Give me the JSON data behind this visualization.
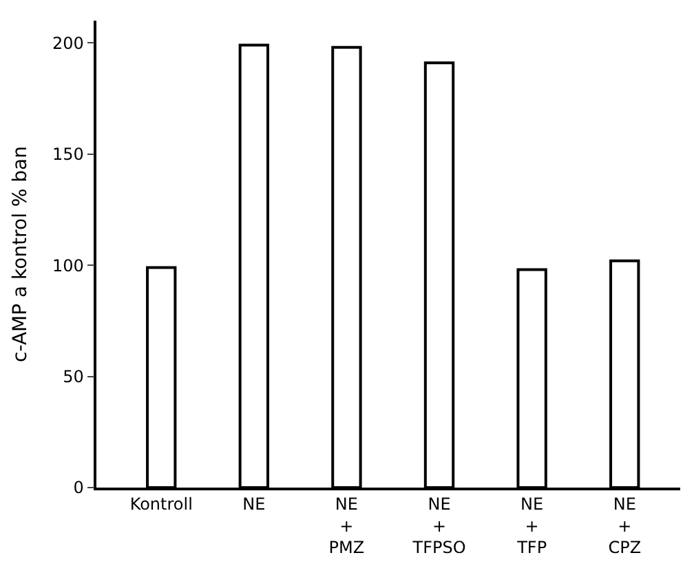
{
  "chart_data": {
    "type": "bar",
    "ylabel": "c-AMP a kontrol % ban",
    "categories": [
      "Kontroll",
      "NE",
      "NE\n+\nPMZ",
      "NE\n+\nTFPSO",
      "NE\n+\nTFP",
      "NE\n+\nCPZ"
    ],
    "values": [
      99,
      199,
      198,
      191,
      98,
      102
    ],
    "color": "#ffffff",
    "ylim": [
      0,
      210
    ],
    "yticks": [
      0,
      50,
      100,
      150,
      200
    ]
  }
}
